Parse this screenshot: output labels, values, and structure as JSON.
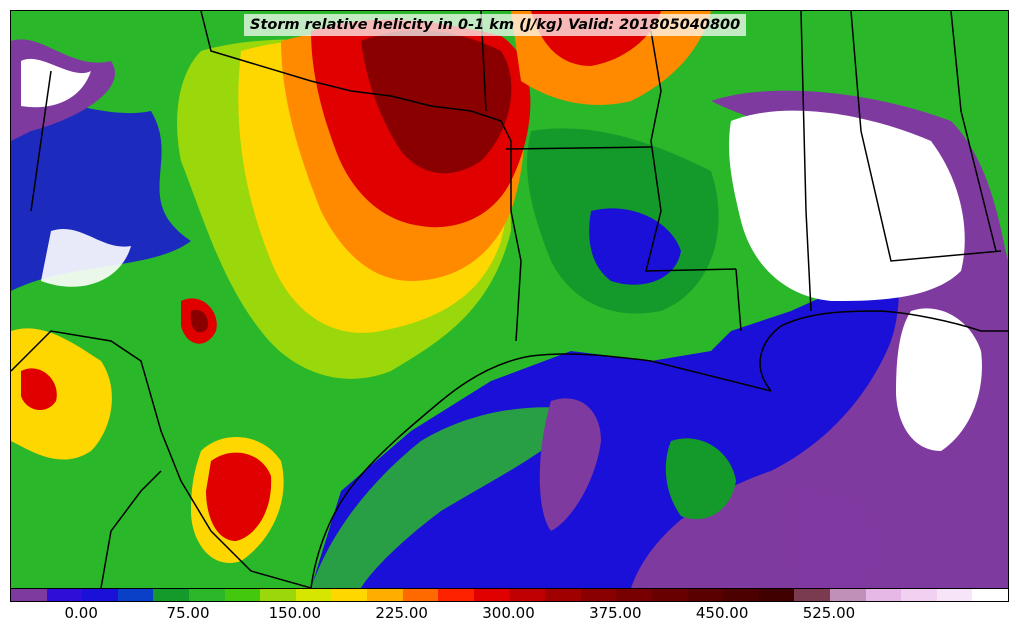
{
  "title": "Storm relative helicity in 0-1 km (J/kg) Valid: 201805040800",
  "colorbar": {
    "colors": [
      "#7f3aa0",
      "#2f0fd8",
      "#1b10d8",
      "#0a3fc8",
      "#149a2a",
      "#2ab82a",
      "#44c80e",
      "#9ad80c",
      "#d6e600",
      "#ffd700",
      "#ffae00",
      "#ff6a00",
      "#ff2200",
      "#e00000",
      "#c00000",
      "#a00000",
      "#8a0000",
      "#780000",
      "#680000",
      "#5a0000",
      "#4d0000",
      "#400000",
      "#7a3a50",
      "#c090b8",
      "#e6b8e6",
      "#f2d0f2",
      "#f8e4f8",
      "#ffffff"
    ],
    "tick_labels": [
      "0.00",
      "75.00",
      "150.00",
      "225.00",
      "300.00",
      "375.00",
      "450.00",
      "525.00"
    ]
  },
  "map_colors": {
    "ocean_deep": "#1b10d8",
    "purple": "#7f3aa0",
    "green": "#149a2a",
    "lightgreen": "#44c80e",
    "yellow": "#ffd700",
    "orange": "#ff8a00",
    "red": "#e00000",
    "darkred": "#8a0000",
    "white": "#ffffff"
  }
}
